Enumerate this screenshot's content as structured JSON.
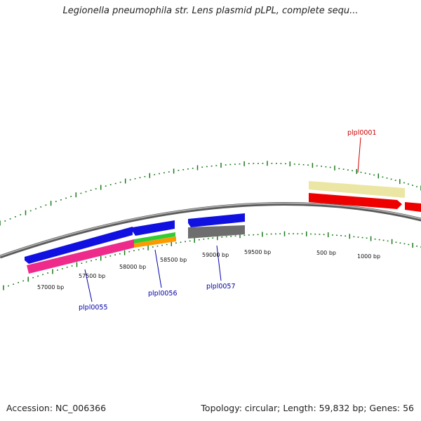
{
  "title": "Legionella pneumophila str. Lens plasmid pLPL, complete sequ...",
  "footer": {
    "accession": "Accession: NC_006366",
    "summary": "Topology: circular; Length: 59,832 bp; Genes: 56"
  },
  "scale_labels": [
    "57000 bp",
    "57500 bp",
    "58000 bp",
    "58500 bp",
    "59000 bp",
    "59500 bp",
    "500 bp",
    "1000 bp"
  ],
  "gene_labels": [
    {
      "text": "plpl0001",
      "color": "#cc0000"
    },
    {
      "text": "plpl0055",
      "color": "#0000aa"
    },
    {
      "text": "plpl0056",
      "color": "#0000aa"
    },
    {
      "text": "plpl0057",
      "color": "#0000aa"
    }
  ],
  "colors": {
    "backbone": "#7a7a7a",
    "ticks": "#1a7a1a",
    "blue_gene": "#1010e0",
    "red_gene": "#ee0000",
    "pink_gene": "#ee2a8a",
    "khaki_gene": "#ece6a4",
    "gray_gene": "#6e6e6e",
    "green_gene": "#33cc33",
    "orange_gene": "#ff9900"
  }
}
